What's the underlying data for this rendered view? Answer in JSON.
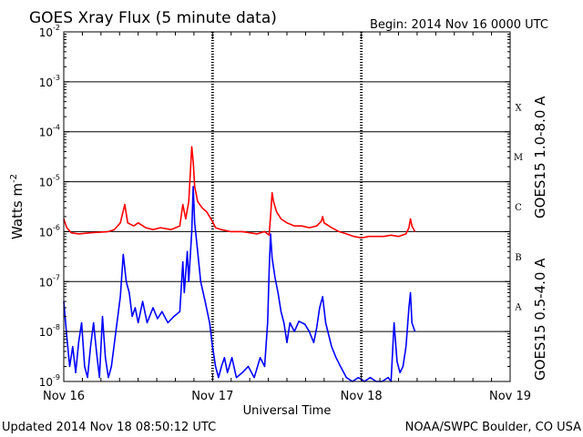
{
  "chart_data": {
    "type": "line",
    "title": "GOES Xray Flux (5 minute data)",
    "begin_text": "Begin:  2014 Nov 16 0000 UTC",
    "xlabel": "Universal Time",
    "ylabel": "Watts m",
    "ylabel_exp": "-2",
    "yscale": "log",
    "ylim": [
      1e-09,
      0.01
    ],
    "x_ticks": [
      "Nov 16",
      "Nov 17",
      "Nov 18",
      "Nov 19"
    ],
    "xlim_days": [
      0,
      3
    ],
    "y_ticks": [
      {
        "base": "10",
        "exp": "-2",
        "value": 0.01
      },
      {
        "base": "10",
        "exp": "-3",
        "value": 0.001
      },
      {
        "base": "10",
        "exp": "-4",
        "value": 0.0001
      },
      {
        "base": "10",
        "exp": "-5",
        "value": 1e-05
      },
      {
        "base": "10",
        "exp": "-6",
        "value": 1e-06
      },
      {
        "base": "10",
        "exp": "-7",
        "value": 1e-07
      },
      {
        "base": "10",
        "exp": "-8",
        "value": 1e-08
      },
      {
        "base": "10",
        "exp": "-9",
        "value": 1e-09
      }
    ],
    "flare_classes": [
      {
        "label": "X",
        "value": 0.0001
      },
      {
        "label": "M",
        "value": 1e-05
      },
      {
        "label": "C",
        "value": 1e-06
      },
      {
        "label": "B",
        "value": 1e-07
      },
      {
        "label": "A",
        "value": 1e-08
      }
    ],
    "series": [
      {
        "name": "GOES15 1.0-8.0 A",
        "color": "#ff0000",
        "points": [
          [
            0.0,
            1.8e-06
          ],
          [
            0.02,
            1.2e-06
          ],
          [
            0.05,
            9.5e-07
          ],
          [
            0.1,
            9e-07
          ],
          [
            0.18,
            9.5e-07
          ],
          [
            0.3,
            1e-06
          ],
          [
            0.34,
            1.1e-06
          ],
          [
            0.38,
            1.5e-06
          ],
          [
            0.41,
            3.5e-06
          ],
          [
            0.43,
            1.5e-06
          ],
          [
            0.47,
            1.3e-06
          ],
          [
            0.5,
            1.5e-06
          ],
          [
            0.55,
            1.2e-06
          ],
          [
            0.6,
            1.1e-06
          ],
          [
            0.65,
            1.2e-06
          ],
          [
            0.72,
            1.1e-06
          ],
          [
            0.78,
            1.3e-06
          ],
          [
            0.8,
            3.5e-06
          ],
          [
            0.82,
            1.8e-06
          ],
          [
            0.84,
            4e-06
          ],
          [
            0.86,
            5e-05
          ],
          [
            0.87,
            2.5e-05
          ],
          [
            0.88,
            8e-06
          ],
          [
            0.9,
            4e-06
          ],
          [
            0.93,
            3e-06
          ],
          [
            0.96,
            2.5e-06
          ],
          [
            1.0,
            1.6e-06
          ],
          [
            1.02,
            1.2e-06
          ],
          [
            1.06,
            1.1e-06
          ],
          [
            1.12,
            1e-06
          ],
          [
            1.2,
            1e-06
          ],
          [
            1.3,
            9e-07
          ],
          [
            1.35,
            1e-06
          ],
          [
            1.38,
            8.5e-07
          ],
          [
            1.39,
            2e-06
          ],
          [
            1.4,
            6e-06
          ],
          [
            1.41,
            4e-06
          ],
          [
            1.43,
            2.5e-06
          ],
          [
            1.46,
            1.8e-06
          ],
          [
            1.5,
            1.5e-06
          ],
          [
            1.55,
            1.3e-06
          ],
          [
            1.6,
            1.3e-06
          ],
          [
            1.65,
            1.2e-06
          ],
          [
            1.7,
            1.3e-06
          ],
          [
            1.73,
            1.6e-06
          ],
          [
            1.74,
            2e-06
          ],
          [
            1.75,
            1.5e-06
          ],
          [
            1.8,
            1.2e-06
          ],
          [
            1.85,
            1e-06
          ],
          [
            1.9,
            9e-07
          ],
          [
            1.95,
            8e-07
          ],
          [
            2.0,
            7.5e-07
          ],
          [
            2.05,
            8e-07
          ],
          [
            2.1,
            8e-07
          ],
          [
            2.15,
            8e-07
          ],
          [
            2.2,
            8.5e-07
          ],
          [
            2.25,
            8e-07
          ],
          [
            2.3,
            9e-07
          ],
          [
            2.32,
            1.2e-06
          ],
          [
            2.33,
            1.8e-06
          ],
          [
            2.34,
            1.3e-06
          ],
          [
            2.36,
            1e-06
          ]
        ]
      },
      {
        "name": "GOES15 0.5-4.0 A",
        "color": "#0000ff",
        "points": [
          [
            0.0,
            4e-08
          ],
          [
            0.02,
            8e-09
          ],
          [
            0.04,
            2e-09
          ],
          [
            0.06,
            5e-09
          ],
          [
            0.08,
            1.5e-09
          ],
          [
            0.1,
            6e-09
          ],
          [
            0.12,
            1.5e-08
          ],
          [
            0.14,
            2e-09
          ],
          [
            0.16,
            1.2e-09
          ],
          [
            0.18,
            5e-09
          ],
          [
            0.2,
            1.5e-08
          ],
          [
            0.22,
            4e-09
          ],
          [
            0.24,
            1.2e-09
          ],
          [
            0.26,
            2e-08
          ],
          [
            0.28,
            3e-09
          ],
          [
            0.3,
            1.2e-09
          ],
          [
            0.32,
            2e-09
          ],
          [
            0.35,
            1e-08
          ],
          [
            0.38,
            5e-08
          ],
          [
            0.4,
            3.5e-07
          ],
          [
            0.42,
            1e-07
          ],
          [
            0.44,
            6e-08
          ],
          [
            0.46,
            2e-08
          ],
          [
            0.48,
            3e-08
          ],
          [
            0.5,
            1.5e-08
          ],
          [
            0.53,
            4e-08
          ],
          [
            0.56,
            1.5e-08
          ],
          [
            0.6,
            3e-08
          ],
          [
            0.63,
            1.8e-08
          ],
          [
            0.66,
            2.5e-08
          ],
          [
            0.7,
            1.5e-08
          ],
          [
            0.74,
            2e-08
          ],
          [
            0.78,
            2.5e-08
          ],
          [
            0.8,
            2.5e-07
          ],
          [
            0.81,
            6e-08
          ],
          [
            0.83,
            4e-07
          ],
          [
            0.84,
            1e-07
          ],
          [
            0.86,
            1e-06
          ],
          [
            0.87,
            8e-06
          ],
          [
            0.88,
            1.5e-06
          ],
          [
            0.9,
            4e-07
          ],
          [
            0.92,
            1e-07
          ],
          [
            0.95,
            4e-08
          ],
          [
            0.98,
            1.5e-08
          ],
          [
            1.0,
            5e-09
          ],
          [
            1.02,
            2e-09
          ],
          [
            1.04,
            1.2e-09
          ],
          [
            1.06,
            2e-09
          ],
          [
            1.08,
            3e-09
          ],
          [
            1.1,
            1.5e-09
          ],
          [
            1.13,
            3e-09
          ],
          [
            1.16,
            1.2e-09
          ],
          [
            1.2,
            1.5e-09
          ],
          [
            1.24,
            2e-09
          ],
          [
            1.28,
            1.2e-09
          ],
          [
            1.32,
            3e-09
          ],
          [
            1.35,
            2e-09
          ],
          [
            1.37,
            1.5e-08
          ],
          [
            1.38,
            1.5e-07
          ],
          [
            1.39,
            9e-07
          ],
          [
            1.4,
            3e-07
          ],
          [
            1.42,
            1.2e-07
          ],
          [
            1.44,
            6e-08
          ],
          [
            1.46,
            2.5e-08
          ],
          [
            1.48,
            1.5e-08
          ],
          [
            1.5,
            6e-09
          ],
          [
            1.52,
            1.5e-08
          ],
          [
            1.55,
            1e-08
          ],
          [
            1.58,
            1.6e-08
          ],
          [
            1.62,
            1.4e-08
          ],
          [
            1.65,
            1e-08
          ],
          [
            1.68,
            6e-09
          ],
          [
            1.7,
            1.2e-08
          ],
          [
            1.72,
            3e-08
          ],
          [
            1.74,
            5e-08
          ],
          [
            1.76,
            1.5e-08
          ],
          [
            1.8,
            5e-09
          ],
          [
            1.83,
            3e-09
          ],
          [
            1.86,
            2e-09
          ],
          [
            1.9,
            1.2e-09
          ],
          [
            1.94,
            1e-09
          ],
          [
            1.98,
            1.2e-09
          ],
          [
            2.02,
            1e-09
          ],
          [
            2.06,
            1.2e-09
          ],
          [
            2.1,
            1e-09
          ],
          [
            2.14,
            1e-09
          ],
          [
            2.18,
            1.2e-09
          ],
          [
            2.2,
            1e-09
          ],
          [
            2.22,
            1.5e-08
          ],
          [
            2.24,
            2.5e-09
          ],
          [
            2.26,
            1.5e-09
          ],
          [
            2.28,
            2e-09
          ],
          [
            2.3,
            5e-09
          ],
          [
            2.32,
            3e-08
          ],
          [
            2.33,
            6e-08
          ],
          [
            2.34,
            1.5e-08
          ],
          [
            2.36,
            1e-08
          ]
        ]
      }
    ]
  },
  "footer": {
    "updated": "Updated 2014 Nov 18 08:50:12 UTC",
    "source": "NOAA/SWPC Boulder, CO USA"
  }
}
